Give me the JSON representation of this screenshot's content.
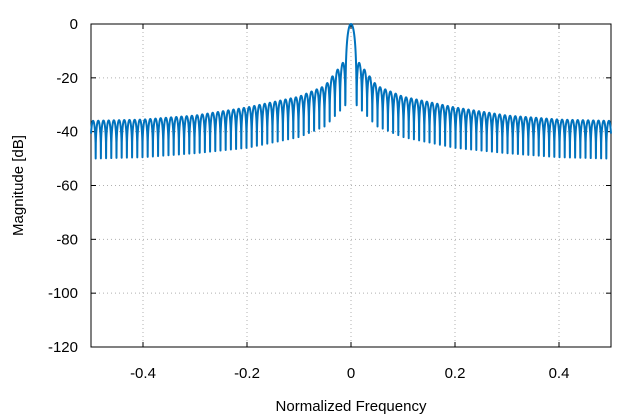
{
  "chart_data": {
    "type": "line",
    "title": "",
    "xlabel": "Normalized Frequency",
    "ylabel": "Magnitude [dB]",
    "xlim": [
      -0.5,
      0.5
    ],
    "ylim": [
      -120,
      0
    ],
    "xticks": [
      -0.4,
      -0.2,
      0,
      0.2,
      0.4
    ],
    "xtick_labels": [
      "-0.4",
      "-0.2",
      "0",
      "0.2",
      "0.4"
    ],
    "yticks": [
      0,
      -20,
      -40,
      -60,
      -80,
      -100,
      -120
    ],
    "ytick_labels": [
      "0",
      "-20",
      "-40",
      "-60",
      "-80",
      "-100",
      "-120"
    ],
    "grid": true,
    "line_color": "#0072bd",
    "series": [
      {
        "description": "sinc-like magnitude response: main lobe peak at 0 dB, sidelobe peaks decaying from about -13 dB near 0 to about -36 dB at the band edges, nulls around -47 to -50 dB",
        "main_lobe_peak": {
          "x": 0,
          "y": 0
        },
        "sidelobe_peak_envelope": [
          {
            "x": 0.01,
            "y": -13
          },
          {
            "x": 0.05,
            "y": -23
          },
          {
            "x": 0.1,
            "y": -27
          },
          {
            "x": 0.2,
            "y": -31
          },
          {
            "x": 0.3,
            "y": -34
          },
          {
            "x": 0.4,
            "y": -35.5
          },
          {
            "x": 0.5,
            "y": -36
          }
        ],
        "sidelobe_null_envelope": [
          {
            "x": 0.01,
            "y": -30
          },
          {
            "x": 0.05,
            "y": -38
          },
          {
            "x": 0.1,
            "y": -42
          },
          {
            "x": 0.2,
            "y": -46
          },
          {
            "x": 0.3,
            "y": -48
          },
          {
            "x": 0.4,
            "y": -49.5
          },
          {
            "x": 0.5,
            "y": -50
          }
        ],
        "sidelobe_spacing": 0.01
      }
    ]
  }
}
